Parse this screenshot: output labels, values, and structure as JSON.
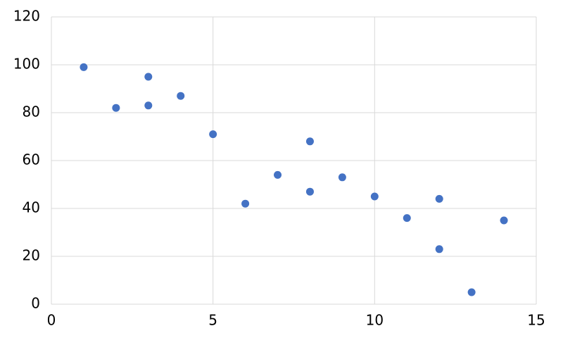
{
  "chart_data": {
    "type": "scatter",
    "x": [
      1,
      2,
      3,
      3,
      4,
      5,
      6,
      7,
      8,
      8,
      9,
      10,
      11,
      12,
      12,
      13,
      14
    ],
    "series": [
      {
        "color": "#4472c4",
        "values": [
          99,
          82,
          95,
          83,
          87,
          71,
          42,
          54,
          68,
          47,
          53,
          45,
          36,
          44,
          23,
          5,
          35
        ]
      }
    ],
    "xlim": [
      0,
      15
    ],
    "xticks": [
      0,
      5,
      10,
      15
    ],
    "ylim": [
      0,
      120
    ],
    "yticks": [
      0,
      20,
      40,
      60,
      80,
      100,
      120
    ],
    "grid": true
  }
}
